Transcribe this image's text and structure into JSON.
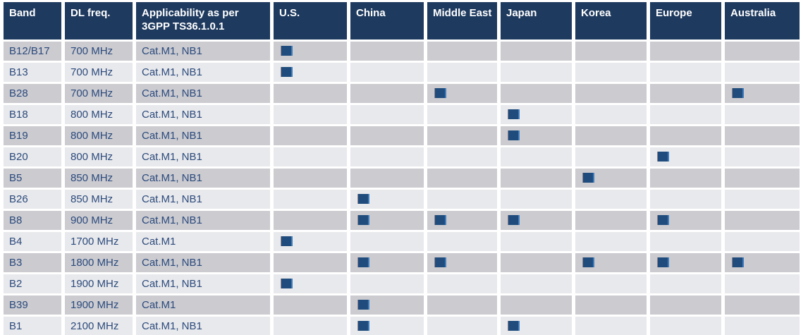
{
  "colors": {
    "header_bg": "#1E3A5F",
    "header_text": "#FFFFFF",
    "row_dark": "#CBCBD0",
    "row_light": "#E8E9EC",
    "body_text": "#2C4A7C",
    "marker_fill": "#1F4C7C",
    "marker_edge_right": "#3E7CBC",
    "marker_edge_left": "#95838B",
    "gap": "#FFFFFF"
  },
  "icons": {
    "region_marker": "filled-square-icon"
  },
  "table": {
    "columns": [
      {
        "key": "band",
        "label": "Band"
      },
      {
        "key": "dl_freq",
        "label": "DL freq."
      },
      {
        "key": "applicability",
        "label": "Applicability as per 3GPP TS36.1.0.1"
      },
      {
        "key": "us",
        "label": "U.S."
      },
      {
        "key": "china",
        "label": "China"
      },
      {
        "key": "middle_east",
        "label": "Middle East"
      },
      {
        "key": "japan",
        "label": "Japan"
      },
      {
        "key": "korea",
        "label": "Korea"
      },
      {
        "key": "europe",
        "label": "Europe"
      },
      {
        "key": "australia",
        "label": "Australia"
      }
    ],
    "rows": [
      {
        "band": "B12/B17",
        "dl_freq": "700 MHz",
        "applicability": "Cat.M1, NB1",
        "regions": {
          "us": true,
          "china": false,
          "middle_east": false,
          "japan": false,
          "korea": false,
          "europe": false,
          "australia": false
        }
      },
      {
        "band": "B13",
        "dl_freq": "700 MHz",
        "applicability": "Cat.M1, NB1",
        "regions": {
          "us": true,
          "china": false,
          "middle_east": false,
          "japan": false,
          "korea": false,
          "europe": false,
          "australia": false
        }
      },
      {
        "band": "B28",
        "dl_freq": "700 MHz",
        "applicability": "Cat.M1, NB1",
        "regions": {
          "us": false,
          "china": false,
          "middle_east": true,
          "japan": false,
          "korea": false,
          "europe": false,
          "australia": true
        }
      },
      {
        "band": "B18",
        "dl_freq": "800 MHz",
        "applicability": "Cat.M1, NB1",
        "regions": {
          "us": false,
          "china": false,
          "middle_east": false,
          "japan": true,
          "korea": false,
          "europe": false,
          "australia": false
        }
      },
      {
        "band": "B19",
        "dl_freq": "800 MHz",
        "applicability": "Cat.M1, NB1",
        "regions": {
          "us": false,
          "china": false,
          "middle_east": false,
          "japan": true,
          "korea": false,
          "europe": false,
          "australia": false
        }
      },
      {
        "band": "B20",
        "dl_freq": "800 MHz",
        "applicability": "Cat.M1, NB1",
        "regions": {
          "us": false,
          "china": false,
          "middle_east": false,
          "japan": false,
          "korea": false,
          "europe": true,
          "australia": false
        }
      },
      {
        "band": "B5",
        "dl_freq": "850 MHz",
        "applicability": "Cat.M1, NB1",
        "regions": {
          "us": false,
          "china": false,
          "middle_east": false,
          "japan": false,
          "korea": true,
          "europe": false,
          "australia": false
        }
      },
      {
        "band": "B26",
        "dl_freq": "850 MHz",
        "applicability": "Cat.M1, NB1",
        "regions": {
          "us": false,
          "china": true,
          "middle_east": false,
          "japan": false,
          "korea": false,
          "europe": false,
          "australia": false
        }
      },
      {
        "band": "B8",
        "dl_freq": "900 MHz",
        "applicability": "Cat.M1, NB1",
        "regions": {
          "us": false,
          "china": true,
          "middle_east": true,
          "japan": true,
          "korea": false,
          "europe": true,
          "australia": false
        }
      },
      {
        "band": "B4",
        "dl_freq": "1700 MHz",
        "applicability": "Cat.M1",
        "regions": {
          "us": true,
          "china": false,
          "middle_east": false,
          "japan": false,
          "korea": false,
          "europe": false,
          "australia": false
        }
      },
      {
        "band": "B3",
        "dl_freq": "1800 MHz",
        "applicability": "Cat.M1, NB1",
        "regions": {
          "us": false,
          "china": true,
          "middle_east": true,
          "japan": false,
          "korea": true,
          "europe": true,
          "australia": true
        }
      },
      {
        "band": "B2",
        "dl_freq": "1900 MHz",
        "applicability": "Cat.M1, NB1",
        "regions": {
          "us": true,
          "china": false,
          "middle_east": false,
          "japan": false,
          "korea": false,
          "europe": false,
          "australia": false
        }
      },
      {
        "band": "B39",
        "dl_freq": "1900 MHz",
        "applicability": "Cat.M1",
        "regions": {
          "us": false,
          "china": true,
          "middle_east": false,
          "japan": false,
          "korea": false,
          "europe": false,
          "australia": false
        }
      },
      {
        "band": "B1",
        "dl_freq": "2100 MHz",
        "applicability": "Cat.M1, NB1",
        "regions": {
          "us": false,
          "china": true,
          "middle_east": false,
          "japan": true,
          "korea": false,
          "europe": false,
          "australia": false
        }
      }
    ]
  }
}
